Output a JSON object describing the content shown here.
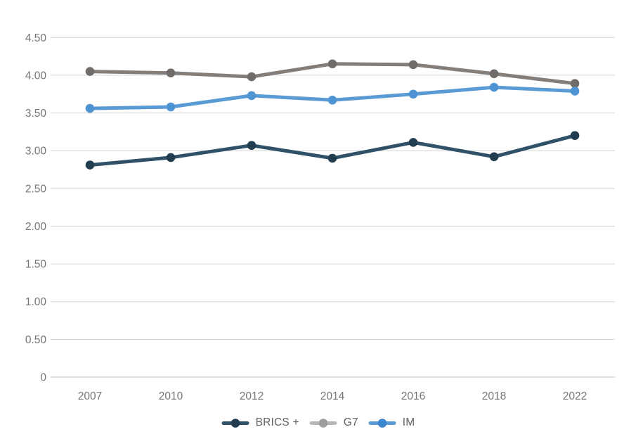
{
  "chart_data": {
    "type": "line",
    "title": "",
    "xlabel": "",
    "ylabel": "",
    "categories": [
      "2007",
      "2010",
      "2012",
      "2014",
      "2016",
      "2018",
      "2022"
    ],
    "series": [
      {
        "name": "BRICS +",
        "values": [
          2.81,
          2.91,
          3.07,
          2.9,
          3.11,
          2.92,
          3.2
        ],
        "line_color": "#305269",
        "point_color": "#223d4f",
        "legend_line_color": "#305269",
        "legend_dot_color": "#223d4f"
      },
      {
        "name": "G7",
        "values": [
          4.05,
          4.03,
          3.98,
          4.15,
          4.14,
          4.02,
          3.89
        ],
        "line_color": "#847e7b",
        "point_color": "#716c6a",
        "legend_line_color": "#b7b7b7",
        "legend_dot_color": "#9e9e9e"
      },
      {
        "name": "IM",
        "values": [
          3.56,
          3.58,
          3.73,
          3.67,
          3.75,
          3.84,
          3.79
        ],
        "line_color": "#5b9bd5",
        "point_color": "#4e93d2",
        "legend_line_color": "#5b9bd5",
        "legend_dot_color": "#3c85cf"
      }
    ],
    "ylim": [
      0,
      4.5
    ],
    "y_ticks": [
      0,
      0.5,
      1.0,
      1.5,
      2.0,
      2.5,
      3.0,
      3.5,
      4.0,
      4.5
    ],
    "y_tick_labels": [
      "0",
      "0.50",
      "1.00",
      "1.50",
      "2.00",
      "2.50",
      "3.00",
      "3.50",
      "4.00",
      "4.50"
    ],
    "grid": true,
    "legend_position": "bottom"
  },
  "style": {
    "grid_color": "#d4d4d4",
    "zero_line_color": "#bfbfbf",
    "tick_label_color": "#757575",
    "legend_label_color": "#616161",
    "background": "#ffffff"
  }
}
